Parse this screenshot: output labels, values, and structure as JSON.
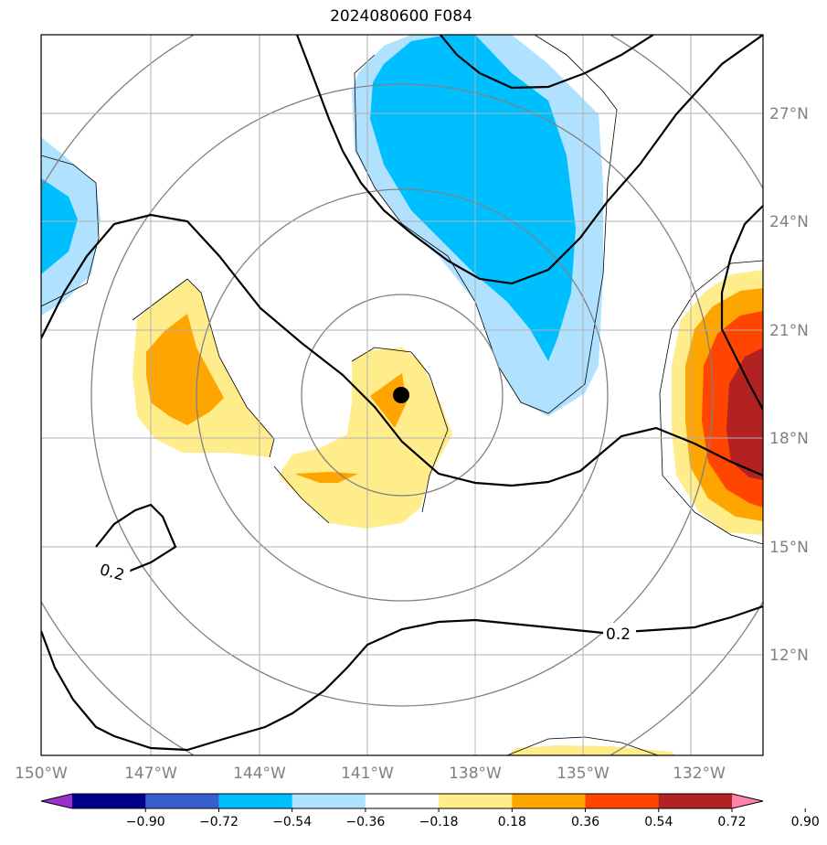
{
  "title": "2024080600 F084",
  "lon_labels": [
    "150°W",
    "147°W",
    "144°W",
    "141°W",
    "138°W",
    "135°W",
    "132°W"
  ],
  "lat_labels": [
    "27°N",
    "24°N",
    "21°N",
    "18°N",
    "15°N",
    "12°N"
  ],
  "contour_labels": [
    "0.2",
    "0.2"
  ],
  "colorbar": {
    "ticks": [
      "−0.90",
      "−0.72",
      "−0.54",
      "−0.36",
      "−0.18",
      "0.18",
      "0.36",
      "0.54",
      "0.72",
      "0.90"
    ],
    "colors": [
      "#9932cc",
      "#00008b",
      "#3a5fcd",
      "#00bfff",
      "#b0e2ff",
      "#ffffff",
      "#ffec8b",
      "#ffa500",
      "#ff4500",
      "#b22222",
      "#ff82ab"
    ]
  },
  "marker": "storm-center-dot"
}
